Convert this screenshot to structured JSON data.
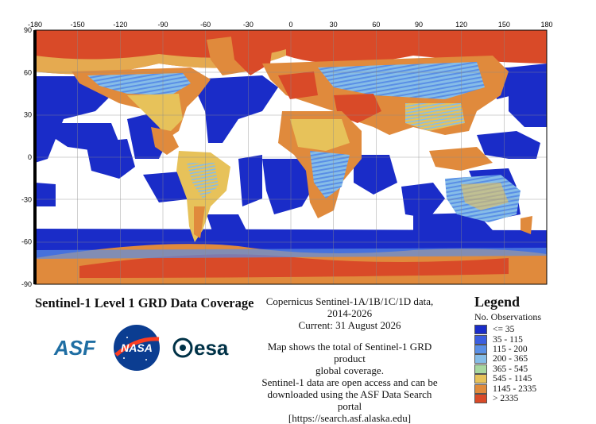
{
  "map": {
    "x_ticks": [
      "-180",
      "-150",
      "-120",
      "-90",
      "-60",
      "-30",
      "0",
      "30",
      "60",
      "90",
      "120",
      "150",
      "180"
    ],
    "y_ticks": [
      "90",
      "60",
      "30",
      "0",
      "-30",
      "-60",
      "-90"
    ],
    "background_color": "#ffffff",
    "grid_color": "#8a8a8a"
  },
  "title": "Sentinel-1 Level 1 GRD Data Coverage",
  "info": {
    "line1": "Copernicus Sentinel-1A/1B/1C/1D data,",
    "line2": "2014-2026",
    "line3": "Current: 31 August 2026",
    "line4": "Map shows the total of Sentinel-1 GRD product",
    "line5": "global coverage.",
    "line6": "Sentinel-1 data are open access and can be",
    "line7": "downloaded using the ASF Data Search portal",
    "line8": "[https://search.asf.alaska.edu]"
  },
  "legend": {
    "title": "Legend",
    "subtitle": "No. Observations",
    "items": [
      {
        "label": "<= 35",
        "color": "#1a2cc8"
      },
      {
        "label": "35 - 115",
        "color": "#3b5ee0"
      },
      {
        "label": "115 - 200",
        "color": "#5a8fe6"
      },
      {
        "label": "200 - 365",
        "color": "#86bde8"
      },
      {
        "label": "365 - 545",
        "color": "#a8d8a0"
      },
      {
        "label": "545 - 1145",
        "color": "#e7c25a"
      },
      {
        "label": "1145 - 2335",
        "color": "#e08a3c"
      },
      {
        "label": "> 2335",
        "color": "#d94a28"
      }
    ]
  },
  "logos": {
    "asf": "ASF",
    "nasa": "NASA",
    "esa": "esa"
  }
}
